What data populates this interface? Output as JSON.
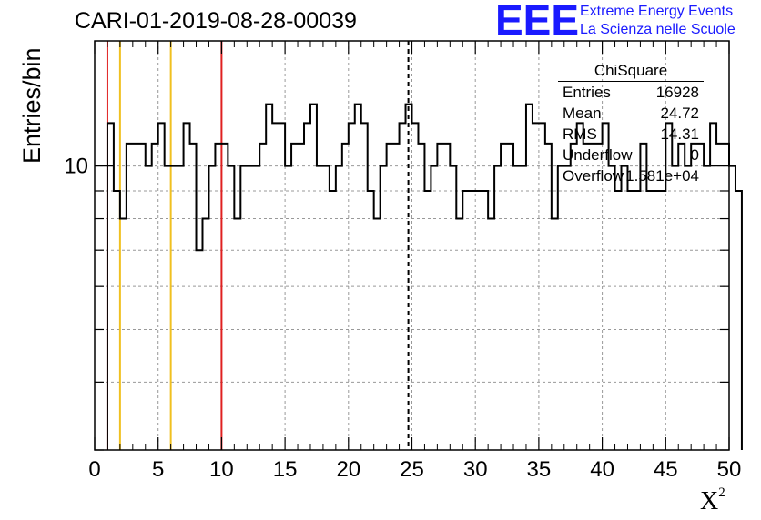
{
  "title": "CARI-01-2019-08-28-00039",
  "logo": {
    "mark": "EEE",
    "line1": "Extreme Energy Events",
    "line2": "La Scienza nelle Scuole",
    "color": "#1a1aff"
  },
  "stats": {
    "title": "ChiSquare",
    "rows": [
      {
        "key": "Entries",
        "value": "16928"
      },
      {
        "key": "Mean",
        "value": "24.72"
      },
      {
        "key": "RMS",
        "value": "14.31"
      },
      {
        "key": "Underflow",
        "value": "0"
      },
      {
        "key": "Overflow",
        "value": "1.581e+04"
      }
    ]
  },
  "chart_data": {
    "type": "histogram",
    "xlabel": "X",
    "xlabel_superscript": "2",
    "ylabel": "Entries/bin",
    "xlim": [
      0,
      50
    ],
    "ylim": [
      3,
      17
    ],
    "yscale": "log",
    "grid": true,
    "bin_width": 0.5,
    "x_ticks": [
      0,
      5,
      10,
      15,
      20,
      25,
      30,
      35,
      40,
      45,
      50
    ],
    "y_tick_labels": [
      {
        "value": 10,
        "label": "10"
      }
    ],
    "bin_edges_start": 1.0,
    "values": [
      12,
      9,
      8,
      11,
      11,
      11,
      10,
      11,
      12,
      10,
      10,
      10,
      12,
      11,
      7,
      8,
      10,
      11,
      11,
      10,
      8,
      10,
      10,
      10,
      11,
      13,
      12,
      12,
      10,
      11,
      11,
      12,
      13,
      10,
      10,
      9,
      10,
      11,
      12,
      13,
      12,
      9,
      8,
      10,
      11,
      11,
      12,
      13,
      12,
      11,
      9,
      10,
      11,
      11,
      10,
      8,
      9,
      9,
      9,
      9,
      8,
      10,
      11,
      11,
      10,
      10,
      13,
      12,
      12,
      11,
      8,
      10,
      10,
      11,
      12,
      11,
      11,
      11,
      12,
      10,
      9,
      10,
      9,
      9,
      11,
      9,
      9,
      9,
      12,
      10,
      11,
      10,
      11,
      11,
      10,
      12,
      11,
      11,
      10,
      9
    ],
    "vertical_lines": [
      {
        "x": 1,
        "color": "#e02020",
        "style": "solid"
      },
      {
        "x": 2,
        "color": "#f0c020",
        "style": "solid"
      },
      {
        "x": 6,
        "color": "#f0c020",
        "style": "solid"
      },
      {
        "x": 10,
        "color": "#e02020",
        "style": "solid"
      },
      {
        "x": 24.72,
        "color": "#000000",
        "style": "dashed"
      }
    ]
  }
}
